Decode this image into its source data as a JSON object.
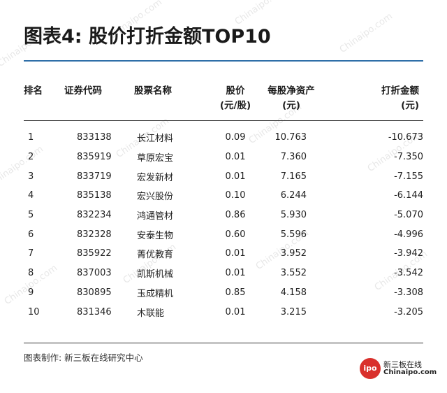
{
  "title": "图表4: 股价打折金额TOP10",
  "table": {
    "headers": {
      "rank": "排名",
      "code": "证券代码",
      "name": "股票名称",
      "price_l1": "股价",
      "price_l2": "(元/股)",
      "nav_l1": "每股净资产",
      "nav_l2": "(元)",
      "discount_l1": "打折金额",
      "discount_l2": "(元)"
    },
    "rows": [
      {
        "rank": "1",
        "code": "833138",
        "name": "长江材料",
        "price": "0.09",
        "nav": "10.763",
        "discount": "-10.673"
      },
      {
        "rank": "2",
        "code": "835919",
        "name": "草原宏宝",
        "price": "0.01",
        "nav": "7.360",
        "discount": "-7.350"
      },
      {
        "rank": "3",
        "code": "833719",
        "name": "宏发新材",
        "price": "0.01",
        "nav": "7.165",
        "discount": "-7.155"
      },
      {
        "rank": "4",
        "code": "835138",
        "name": "宏兴股份",
        "price": "0.10",
        "nav": "6.244",
        "discount": "-6.144"
      },
      {
        "rank": "5",
        "code": "832234",
        "name": "鸿通管材",
        "price": "0.86",
        "nav": "5.930",
        "discount": "-5.070"
      },
      {
        "rank": "6",
        "code": "832328",
        "name": "安泰生物",
        "price": "0.60",
        "nav": "5.596",
        "discount": "-4.996"
      },
      {
        "rank": "7",
        "code": "835922",
        "name": "菁优教育",
        "price": "0.01",
        "nav": "3.952",
        "discount": "-3.942"
      },
      {
        "rank": "8",
        "code": "837003",
        "name": "凯斯机械",
        "price": "0.01",
        "nav": "3.552",
        "discount": "-3.542"
      },
      {
        "rank": "9",
        "code": "830895",
        "name": "玉成精机",
        "price": "0.85",
        "nav": "4.158",
        "discount": "-3.308"
      },
      {
        "rank": "10",
        "code": "831346",
        "name": "木联能",
        "price": "0.01",
        "nav": "3.215",
        "discount": "-3.205"
      }
    ]
  },
  "footer": "图表制作: 新三板在线研究中心",
  "logo": {
    "mark": "ipo",
    "name_cn": "新三板在线",
    "name_en": "Chinaipo.com"
  },
  "watermark_text": "Chinaipo.com",
  "colors": {
    "title_rule": "#2f6fa8",
    "logo_red": "#d9302c"
  }
}
